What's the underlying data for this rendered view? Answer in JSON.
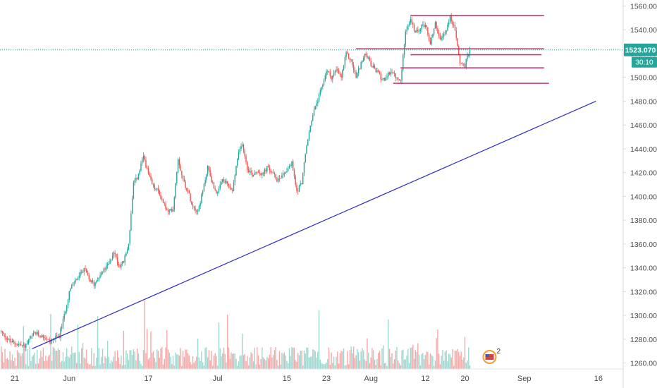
{
  "colors": {
    "up": "#26a69a",
    "down": "#ef5350",
    "volume_up": "#9fd8d1",
    "volume_down": "#f4a9a8",
    "trendline": "#2b2bc8",
    "level_line": "#c2185b",
    "last_price_line": "#26a69a",
    "badge_price": "#26a69a",
    "badge_timer": "#26a69a",
    "axis_text": "#4a4a4a",
    "axis_border": "#d9d9d9"
  },
  "chart_data": {
    "type": "candlestick",
    "grid": false,
    "ylim": [
      1255,
      1565
    ],
    "x_range_days": [
      -3,
      123
    ],
    "y_ticks": [
      "1260.000",
      "1280.000",
      "1300.000",
      "1320.000",
      "1340.000",
      "1360.000",
      "1380.000",
      "1400.000",
      "1420.000",
      "1440.000",
      "1460.000",
      "1480.000",
      "1500.000",
      "1520.000",
      "1540.000",
      "1560.000"
    ],
    "x_ticks": [
      {
        "label": "21",
        "day": 0
      },
      {
        "label": "Jun",
        "day": 11
      },
      {
        "label": "17",
        "day": 27
      },
      {
        "label": "Jul",
        "day": 41
      },
      {
        "label": "15",
        "day": 55
      },
      {
        "label": "23",
        "day": 63
      },
      {
        "label": "Aug",
        "day": 72
      },
      {
        "label": "12",
        "day": 83
      },
      {
        "label": "20",
        "day": 91
      },
      {
        "label": "Sep",
        "day": 103
      },
      {
        "label": "16",
        "day": 118
      }
    ],
    "close_path": [
      [
        -3,
        1287
      ],
      [
        -1,
        1278
      ],
      [
        2,
        1274
      ],
      [
        4,
        1285
      ],
      [
        6,
        1282
      ],
      [
        7,
        1278
      ],
      [
        9,
        1283
      ],
      [
        10,
        1300
      ],
      [
        11,
        1320
      ],
      [
        12,
        1328
      ],
      [
        13,
        1333
      ],
      [
        14,
        1340
      ],
      [
        15,
        1330
      ],
      [
        16,
        1326
      ],
      [
        17,
        1333
      ],
      [
        18,
        1338
      ],
      [
        19,
        1343
      ],
      [
        20,
        1354
      ],
      [
        21,
        1342
      ],
      [
        22,
        1345
      ],
      [
        23,
        1360
      ],
      [
        24,
        1410
      ],
      [
        25,
        1418
      ],
      [
        26,
        1434
      ],
      [
        27,
        1418
      ],
      [
        28,
        1408
      ],
      [
        29,
        1404
      ],
      [
        30,
        1395
      ],
      [
        31,
        1386
      ],
      [
        32,
        1390
      ],
      [
        33,
        1432
      ],
      [
        34,
        1414
      ],
      [
        35,
        1404
      ],
      [
        36,
        1392
      ],
      [
        37,
        1388
      ],
      [
        38,
        1404
      ],
      [
        39,
        1425
      ],
      [
        40,
        1410
      ],
      [
        41,
        1402
      ],
      [
        42,
        1414
      ],
      [
        43,
        1410
      ],
      [
        44,
        1404
      ],
      [
        45,
        1432
      ],
      [
        46,
        1445
      ],
      [
        47,
        1424
      ],
      [
        48,
        1418
      ],
      [
        49,
        1422
      ],
      [
        50,
        1418
      ],
      [
        51,
        1424
      ],
      [
        52,
        1420
      ],
      [
        53,
        1414
      ],
      [
        54,
        1418
      ],
      [
        55,
        1422
      ],
      [
        56,
        1428
      ],
      [
        57,
        1404
      ],
      [
        58,
        1412
      ],
      [
        59,
        1442
      ],
      [
        60,
        1465
      ],
      [
        61,
        1478
      ],
      [
        62,
        1490
      ],
      [
        63,
        1506
      ],
      [
        64,
        1500
      ],
      [
        65,
        1506
      ],
      [
        66,
        1500
      ],
      [
        67,
        1520
      ],
      [
        68,
        1514
      ],
      [
        69,
        1500
      ],
      [
        70,
        1512
      ],
      [
        71,
        1520
      ],
      [
        72,
        1510
      ],
      [
        73,
        1506
      ],
      [
        74,
        1500
      ],
      [
        75,
        1498
      ],
      [
        76,
        1506
      ],
      [
        77,
        1500
      ],
      [
        78,
        1496
      ],
      [
        79,
        1540
      ],
      [
        80,
        1548
      ],
      [
        81,
        1537
      ],
      [
        82,
        1542
      ],
      [
        83,
        1545
      ],
      [
        84,
        1528
      ],
      [
        85,
        1546
      ],
      [
        86,
        1530
      ],
      [
        87,
        1538
      ],
      [
        88,
        1550
      ],
      [
        89,
        1540
      ],
      [
        90,
        1512
      ],
      [
        91,
        1510
      ],
      [
        92,
        1523
      ]
    ],
    "volume_max": 335,
    "trendlines": [
      {
        "from": {
          "day": 3.5,
          "price": 1272
        },
        "to": {
          "day": 117.5,
          "price": 1480
        }
      }
    ],
    "levels": [
      {
        "price": 1552,
        "from_day": 80,
        "to_day": 107
      },
      {
        "price": 1524,
        "from_day": 69,
        "to_day": 107
      },
      {
        "price": 1519,
        "from_day": 80,
        "to_day": 106.5
      },
      {
        "price": 1508,
        "from_day": 78,
        "to_day": 107
      },
      {
        "price": 1495,
        "from_day": 76.5,
        "to_day": 108
      }
    ],
    "last_price": {
      "value": 1523.07,
      "label": "1523.070"
    },
    "countdown": "30:10",
    "badge_count": "2"
  }
}
